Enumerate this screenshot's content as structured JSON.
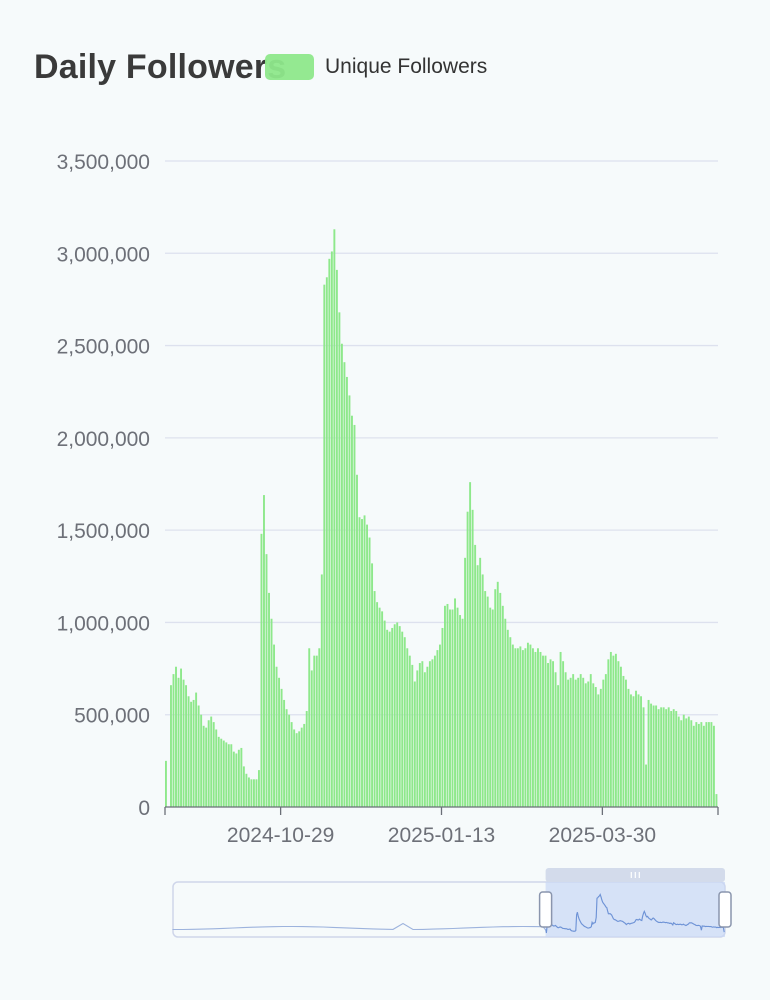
{
  "chart_data": {
    "type": "bar",
    "title": "Daily Followers",
    "legend": {
      "position": "top",
      "entries": [
        "Unique Followers"
      ]
    },
    "series": [
      {
        "name": "Unique Followers",
        "color": "#8ee88b",
        "values": [
          250000,
          0,
          660000,
          720000,
          760000,
          700000,
          750000,
          690000,
          660000,
          600000,
          570000,
          580000,
          620000,
          550000,
          500000,
          440000,
          430000,
          470000,
          490000,
          460000,
          420000,
          380000,
          370000,
          360000,
          350000,
          340000,
          340000,
          300000,
          290000,
          310000,
          320000,
          220000,
          180000,
          160000,
          150000,
          150000,
          150000,
          200000,
          1480000,
          1690000,
          1370000,
          1160000,
          1020000,
          880000,
          760000,
          700000,
          640000,
          580000,
          530000,
          500000,
          460000,
          420000,
          400000,
          410000,
          430000,
          450000,
          520000,
          860000,
          740000,
          820000,
          820000,
          860000,
          1260000,
          2830000,
          2870000,
          2970000,
          3010000,
          3130000,
          2910000,
          2680000,
          2510000,
          2410000,
          2330000,
          2230000,
          2120000,
          2070000,
          1800000,
          1570000,
          1560000,
          1580000,
          1530000,
          1460000,
          1320000,
          1170000,
          1110000,
          1080000,
          1060000,
          1010000,
          960000,
          950000,
          970000,
          990000,
          1000000,
          980000,
          950000,
          920000,
          860000,
          820000,
          770000,
          680000,
          740000,
          780000,
          790000,
          730000,
          760000,
          790000,
          800000,
          820000,
          850000,
          880000,
          970000,
          1090000,
          1100000,
          1070000,
          1070000,
          1130000,
          1080000,
          1040000,
          1020000,
          1350000,
          1600000,
          1760000,
          1610000,
          1420000,
          1310000,
          1350000,
          1260000,
          1170000,
          1140000,
          1080000,
          1070000,
          1180000,
          1220000,
          1160000,
          1090000,
          1020000,
          960000,
          920000,
          880000,
          860000,
          860000,
          870000,
          850000,
          860000,
          890000,
          880000,
          860000,
          840000,
          860000,
          840000,
          820000,
          820000,
          780000,
          800000,
          790000,
          730000,
          660000,
          840000,
          790000,
          730000,
          690000,
          700000,
          720000,
          690000,
          700000,
          720000,
          700000,
          670000,
          680000,
          720000,
          670000,
          650000,
          610000,
          640000,
          690000,
          720000,
          800000,
          840000,
          820000,
          830000,
          790000,
          760000,
          710000,
          690000,
          640000,
          610000,
          600000,
          630000,
          610000,
          600000,
          540000,
          230000,
          580000,
          560000,
          550000,
          550000,
          530000,
          540000,
          540000,
          530000,
          540000,
          520000,
          530000,
          520000,
          490000,
          470000,
          500000,
          480000,
          490000,
          470000,
          440000,
          460000,
          450000,
          460000,
          440000,
          460000,
          460000,
          460000,
          440000,
          70000
        ]
      }
    ],
    "x_tick_labels": [
      "2024-10-29",
      "2025-01-13",
      "2025-03-30"
    ],
    "y_tick_labels": [
      "0",
      "500,000",
      "1,000,000",
      "1,500,000",
      "2,000,000",
      "2,500,000",
      "3,000,000",
      "3,500,000"
    ],
    "ylim": [
      0,
      3500000
    ],
    "grid": true,
    "xlabel": "",
    "ylabel": ""
  },
  "data_zoom": {
    "range_percent": [
      67.5,
      100
    ]
  }
}
